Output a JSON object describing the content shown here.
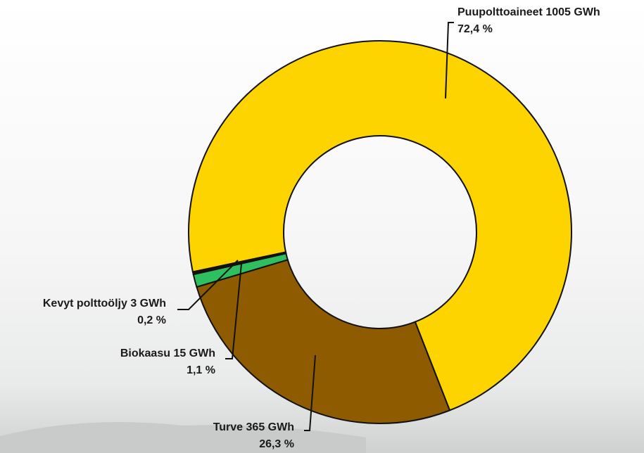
{
  "chart_data": {
    "type": "donut",
    "categories": [
      "Puupolttoaineet",
      "Turve",
      "Biokaasu",
      "Kevyt polttoöljy"
    ],
    "values": [
      1005,
      365,
      15,
      3
    ],
    "value_labels": [
      "1005 GWh",
      "365 GWh",
      "15 GWh",
      "3 GWh"
    ],
    "share_labels": [
      "72,4 %",
      "26,3 %",
      "1,1 %",
      "0,2 %"
    ],
    "colors": [
      "#fdd400",
      "#8e5b00",
      "#2fbf5e",
      "#111111"
    ]
  }
}
